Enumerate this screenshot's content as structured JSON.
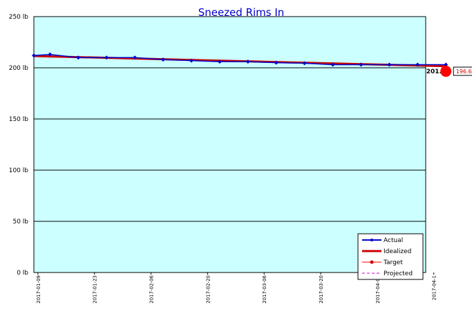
{
  "chart_data": {
    "type": "line",
    "title": "Sneezed Rims In",
    "xlabel": "",
    "ylabel": "",
    "ylim": [
      0,
      250
    ],
    "xlim": [
      "2017-01-08",
      "2017-04-15"
    ],
    "y_ticks": [
      "0 lb",
      "50 lb",
      "100 lb",
      "150 lb",
      "200 lb",
      "250 lb"
    ],
    "y_tick_values": [
      0,
      50,
      100,
      150,
      200,
      250
    ],
    "x_ticks": [
      "2017-01-09",
      "2017-01-23",
      "2017-02-06",
      "2017-02-20",
      "2017-03-06",
      "2017-03-20",
      "2017-04-03",
      "2017-04-1"
    ],
    "x_tick_dates": [
      "2017-01-09",
      "2017-01-23",
      "2017-02-06",
      "2017-02-20",
      "2017-03-06",
      "2017-03-20",
      "2017-04-03",
      "2017-04-17"
    ],
    "grid": "horizontal",
    "legend_position": "bottom-right",
    "series": [
      {
        "name": "Actual",
        "color": "#0000cc",
        "x": [
          "2017-01-08",
          "2017-01-12",
          "2017-01-19",
          "2017-01-26",
          "2017-02-02",
          "2017-02-09",
          "2017-02-16",
          "2017-02-23",
          "2017-03-02",
          "2017-03-09",
          "2017-03-16",
          "2017-03-23",
          "2017-03-30",
          "2017-04-06",
          "2017-04-13",
          "2017-04-20"
        ],
        "values": [
          212,
          213,
          210,
          210,
          210,
          208,
          207,
          206,
          206,
          205,
          204.5,
          203,
          203,
          203,
          203,
          203
        ]
      },
      {
        "name": "Idealized",
        "color": "#cc0000",
        "x": [
          "2017-01-08",
          "2017-04-20"
        ],
        "values": [
          211.5,
          201.5
        ]
      },
      {
        "name": "Target",
        "color": "#ff0000",
        "x": [
          "2017-04-20"
        ],
        "values": [
          196.6
        ]
      },
      {
        "name": "Projected",
        "color": "#cc00cc",
        "x": [],
        "values": []
      }
    ],
    "annotations": {
      "idealized_end_label": "201.5",
      "target_label": "196.6"
    }
  },
  "colors": {
    "plot_background": "#ccffff",
    "grid": "#000000",
    "axis": "#000000"
  }
}
